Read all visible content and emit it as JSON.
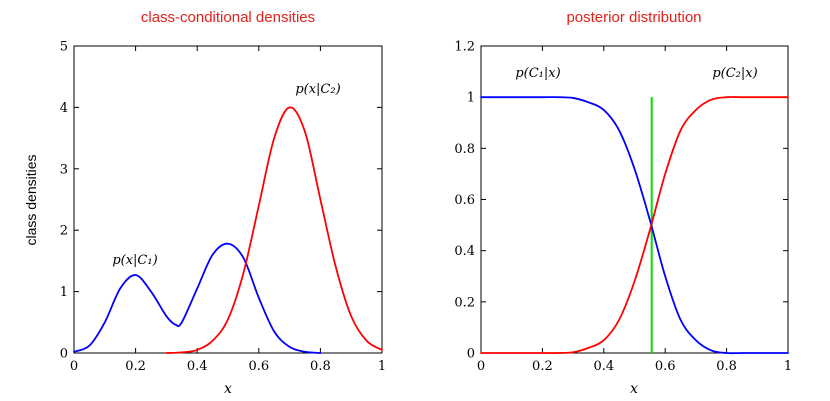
{
  "chart_data": [
    {
      "type": "line",
      "title": "class-conditional densities",
      "xlabel": "x",
      "ylabel": "class densities",
      "xlim": [
        0,
        1
      ],
      "ylim": [
        0,
        5
      ],
      "xticks": [
        "0",
        "0.2",
        "0.4",
        "0.6",
        "0.8",
        "1"
      ],
      "yticks": [
        "0",
        "1",
        "2",
        "3",
        "4",
        "5"
      ],
      "grid": false,
      "annotations": [
        "p(x|C₁)",
        "p(x|C₂)"
      ],
      "series": [
        {
          "name": "p(x|C₁)",
          "color": "#0000ff",
          "x": [
            0,
            0.05,
            0.1,
            0.15,
            0.2,
            0.25,
            0.3,
            0.33,
            0.35,
            0.4,
            0.45,
            0.5,
            0.55,
            0.6,
            0.65,
            0.7,
            0.75,
            0.8
          ],
          "y": [
            0.02,
            0.12,
            0.5,
            1.05,
            1.27,
            1.0,
            0.6,
            0.46,
            0.5,
            1.05,
            1.6,
            1.78,
            1.55,
            0.9,
            0.35,
            0.1,
            0.02,
            0
          ]
        },
        {
          "name": "p(x|C₂)",
          "color": "#ff0000",
          "x": [
            0.3,
            0.35,
            0.4,
            0.45,
            0.5,
            0.55,
            0.6,
            0.65,
            0.7,
            0.75,
            0.8,
            0.85,
            0.9,
            0.95,
            1.0
          ],
          "y": [
            0,
            0.01,
            0.05,
            0.2,
            0.55,
            1.3,
            2.4,
            3.5,
            4.0,
            3.6,
            2.5,
            1.4,
            0.6,
            0.2,
            0.05
          ]
        }
      ]
    },
    {
      "type": "line",
      "title": "posterior distribution",
      "xlabel": "x",
      "ylabel": "",
      "xlim": [
        0,
        1
      ],
      "ylim": [
        0,
        1.2
      ],
      "xticks": [
        "0",
        "0.2",
        "0.4",
        "0.6",
        "0.8",
        "1"
      ],
      "yticks": [
        "0",
        "0.2",
        "0.4",
        "0.6",
        "0.8",
        "1",
        "1.2"
      ],
      "grid": false,
      "annotations": [
        "p(C₁|x)",
        "p(C₂|x)"
      ],
      "decision_boundary": {
        "x": 0.556,
        "y_range": [
          0,
          1
        ],
        "color": "#00dd00"
      },
      "series": [
        {
          "name": "p(C₁|x)",
          "color": "#0000ff",
          "x": [
            0,
            0.1,
            0.2,
            0.25,
            0.3,
            0.35,
            0.4,
            0.45,
            0.5,
            0.55,
            0.6,
            0.65,
            0.7,
            0.75,
            0.8,
            0.85,
            0.9,
            1.0
          ],
          "y": [
            1,
            1,
            1,
            1,
            0.997,
            0.98,
            0.95,
            0.87,
            0.72,
            0.52,
            0.3,
            0.13,
            0.05,
            0.01,
            0,
            0,
            0,
            0
          ]
        },
        {
          "name": "p(C₂|x)",
          "color": "#ff0000",
          "x": [
            0,
            0.1,
            0.2,
            0.25,
            0.3,
            0.35,
            0.4,
            0.45,
            0.5,
            0.55,
            0.6,
            0.65,
            0.7,
            0.75,
            0.8,
            0.85,
            0.9,
            1.0
          ],
          "y": [
            0,
            0,
            0,
            0,
            0.003,
            0.02,
            0.05,
            0.13,
            0.28,
            0.48,
            0.7,
            0.87,
            0.95,
            0.99,
            1,
            1,
            1,
            1
          ]
        }
      ]
    }
  ]
}
